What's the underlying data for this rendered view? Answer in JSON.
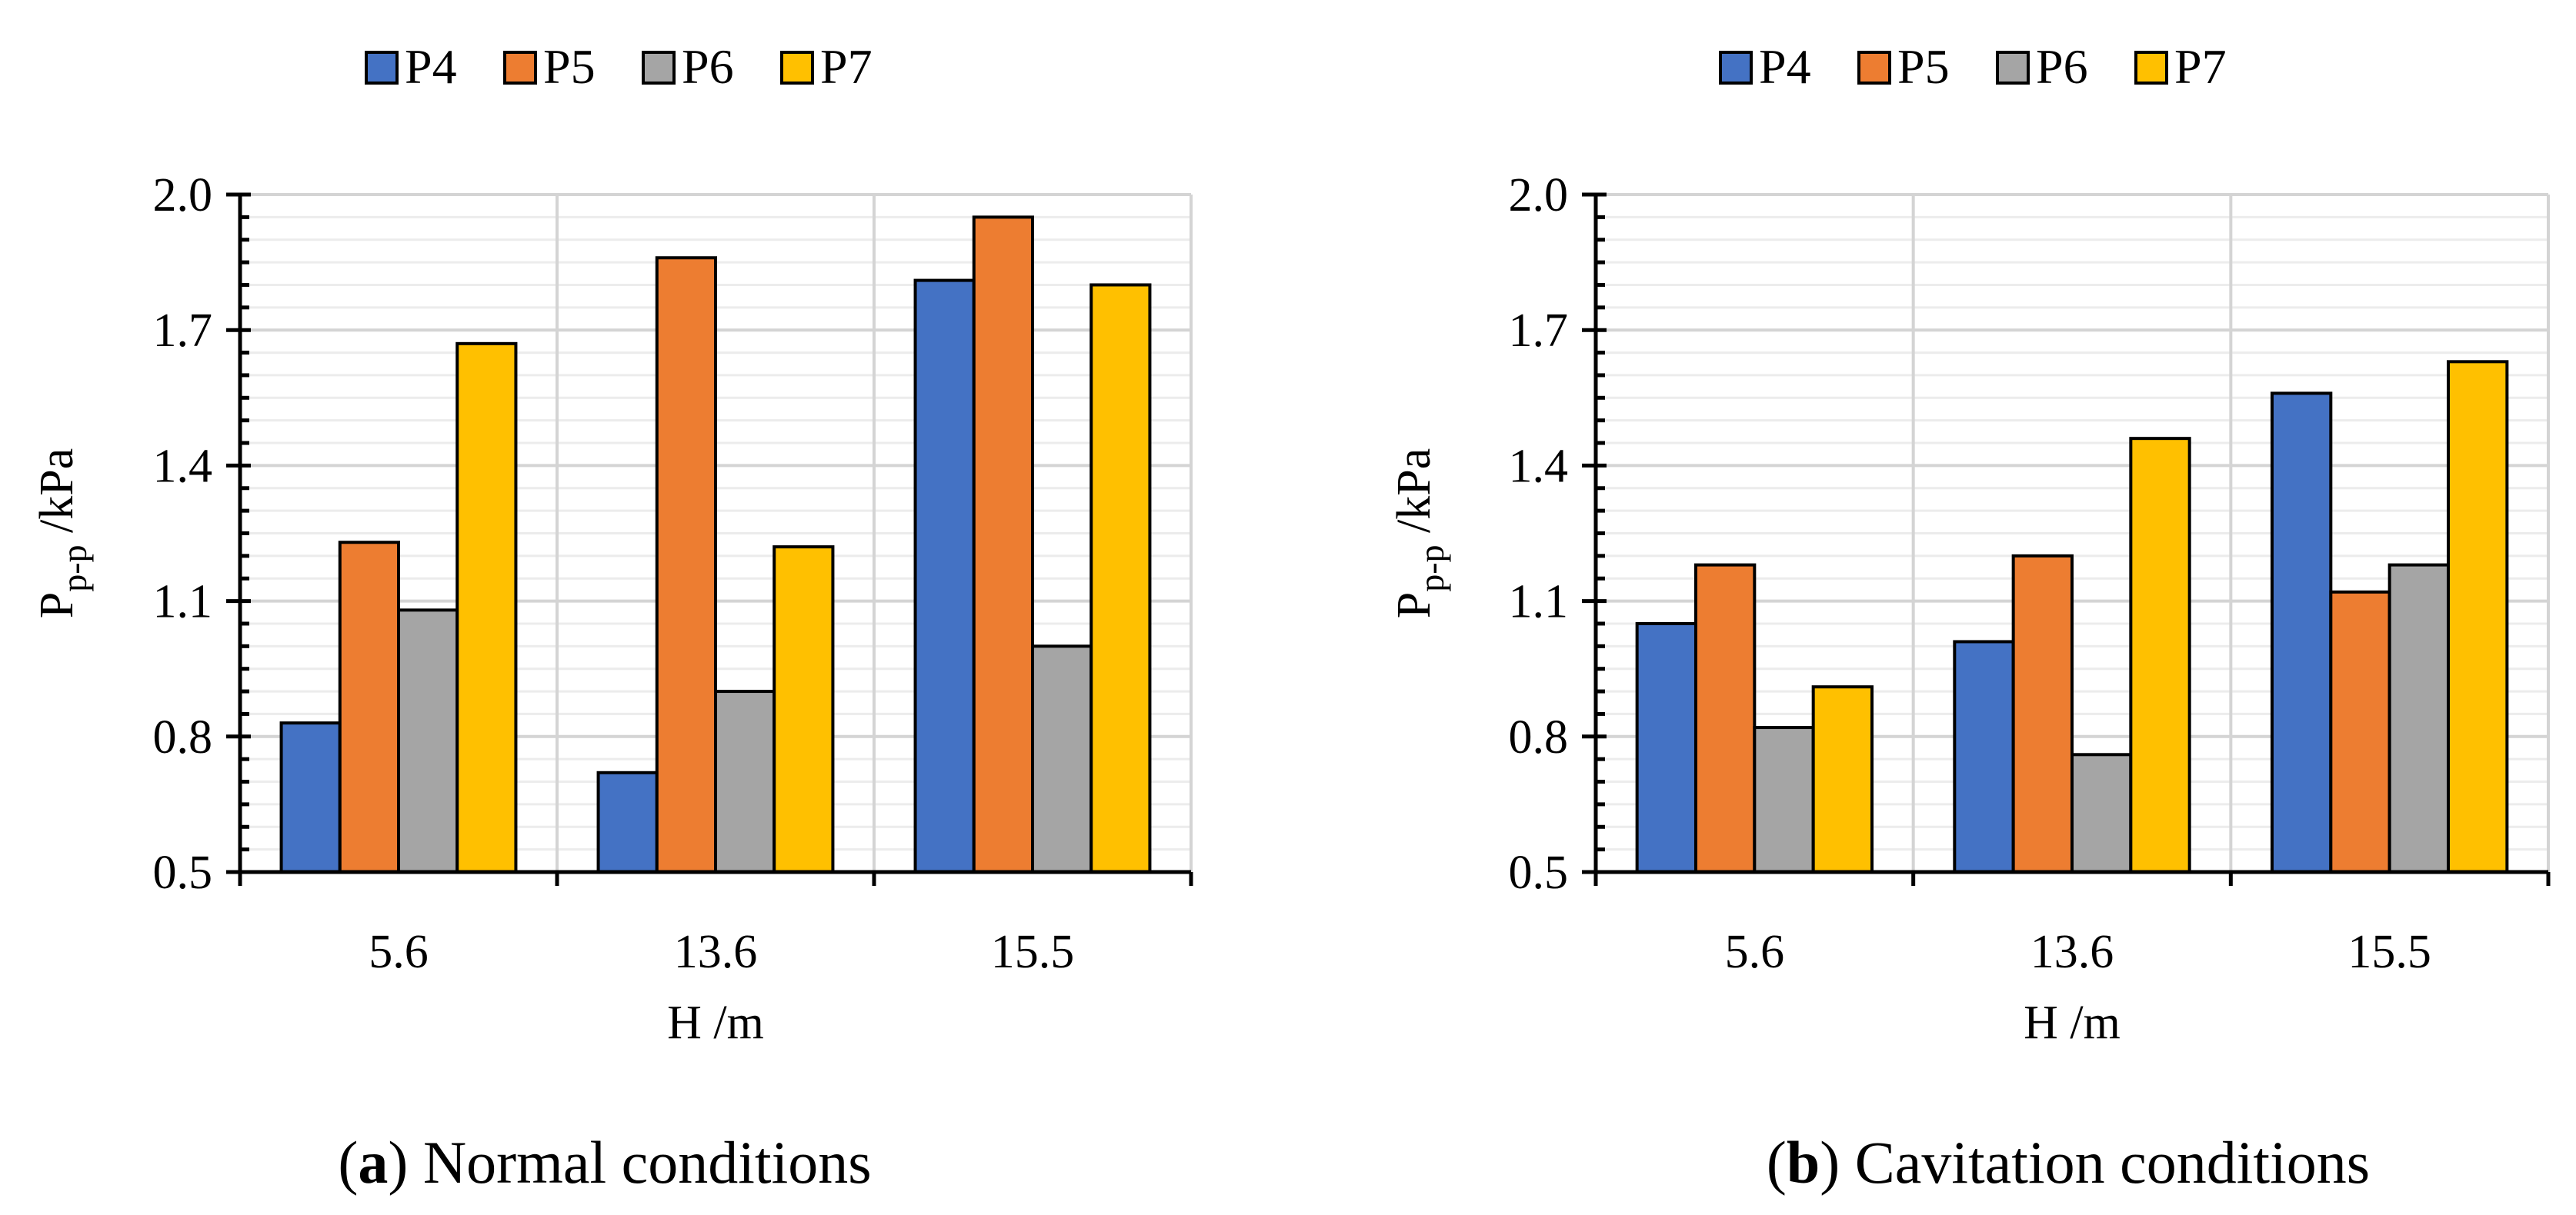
{
  "chart_data": [
    {
      "type": "bar",
      "categories": [
        "5.6",
        "13.6",
        "15.5"
      ],
      "series": [
        {
          "name": "P4",
          "values": [
            0.83,
            0.72,
            1.81
          ]
        },
        {
          "name": "P5",
          "values": [
            1.23,
            1.86,
            1.95
          ]
        },
        {
          "name": "P6",
          "values": [
            1.08,
            0.9,
            1.0
          ]
        },
        {
          "name": "P7",
          "values": [
            1.67,
            1.22,
            1.8
          ]
        }
      ],
      "xlabel": "H /m",
      "ylabel_main": "P",
      "ylabel_sub": "p-p",
      "ylabel_unit": " /kPa",
      "ylim": [
        0.5,
        2.0
      ],
      "yticks": [
        "0.5",
        "0.8",
        "1.1",
        "1.4",
        "1.7",
        "2.0"
      ],
      "caption_letter": "a",
      "caption_text": " Normal conditions",
      "legend_position": "top",
      "grid": true
    },
    {
      "type": "bar",
      "categories": [
        "5.6",
        "13.6",
        "15.5"
      ],
      "series": [
        {
          "name": "P4",
          "values": [
            1.05,
            1.01,
            1.56
          ]
        },
        {
          "name": "P5",
          "values": [
            1.18,
            1.2,
            1.12
          ]
        },
        {
          "name": "P6",
          "values": [
            0.82,
            0.76,
            1.18
          ]
        },
        {
          "name": "P7",
          "values": [
            0.91,
            1.46,
            1.63
          ]
        }
      ],
      "xlabel": "H /m",
      "ylabel_main": "P",
      "ylabel_sub": "p-p",
      "ylabel_unit": " /kPa",
      "ylim": [
        0.5,
        2.0
      ],
      "yticks": [
        "0.5",
        "0.8",
        "1.1",
        "1.4",
        "1.7",
        "2.0"
      ],
      "caption_letter": "b",
      "caption_text": " Cavitation conditions",
      "legend_position": "top",
      "grid": true
    }
  ],
  "colors": {
    "P4": "#4472c4",
    "P5": "#ed7d31",
    "P6": "#a5a5a5",
    "P7": "#ffc000"
  }
}
